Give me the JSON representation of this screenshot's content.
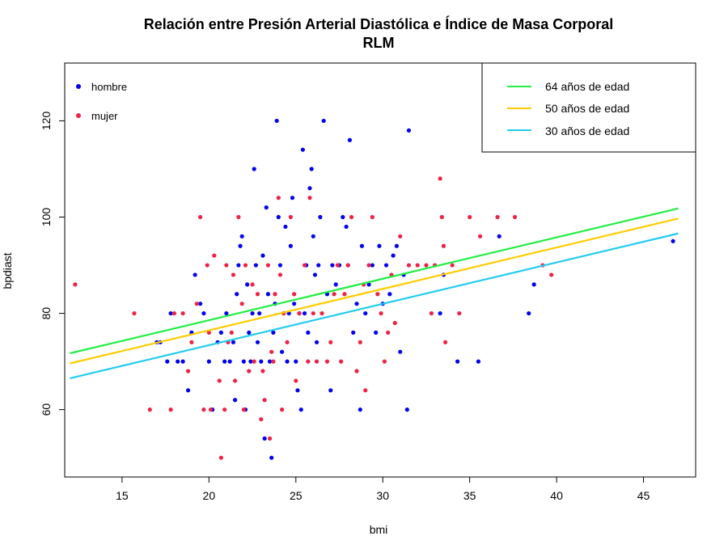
{
  "chart_data": {
    "type": "scatter",
    "title": "Relación entre Presión Arterial Diastólica e Índice de Masa Corporal",
    "subtitle": "RLM",
    "xlabel": "bmi",
    "ylabel": "bpdiast",
    "xlim": [
      11.7,
      48.0
    ],
    "ylim": [
      46,
      132
    ],
    "x_ticks": [
      15,
      20,
      25,
      30,
      35,
      40,
      45
    ],
    "y_ticks": [
      60,
      80,
      100,
      120
    ],
    "grid": false,
    "point_legend": {
      "placement": "top-left",
      "entries": [
        {
          "label": "hombre",
          "color": "#0000EE"
        },
        {
          "label": "mujer",
          "color": "#EE2244"
        }
      ]
    },
    "line_legend": {
      "placement": "top-right",
      "entries": [
        {
          "label": "64 años de edad",
          "color": "#22EE44"
        },
        {
          "label": "50 años de edad",
          "color": "#FFCC00"
        },
        {
          "label": "30 años de edad",
          "color": "#22CCEE"
        }
      ]
    },
    "lines": [
      {
        "name": "64 años de edad",
        "color": "#22EE44",
        "x": [
          12.0,
          47.0
        ],
        "y": [
          71.7,
          101.8
        ]
      },
      {
        "name": "50 años de edad",
        "color": "#FFCC00",
        "x": [
          12.0,
          47.0
        ],
        "y": [
          69.6,
          99.7
        ]
      },
      {
        "name": "30 años de edad",
        "color": "#22CCEE",
        "x": [
          12.0,
          47.0
        ],
        "y": [
          66.5,
          96.6
        ]
      }
    ],
    "series": [
      {
        "name": "hombre",
        "color": "#0000EE",
        "points": [
          [
            17.0,
            74
          ],
          [
            17.2,
            74
          ],
          [
            17.6,
            70
          ],
          [
            17.8,
            80
          ],
          [
            18.2,
            70
          ],
          [
            18.5,
            70
          ],
          [
            18.8,
            64
          ],
          [
            19.0,
            76
          ],
          [
            19.2,
            88
          ],
          [
            19.5,
            82
          ],
          [
            19.7,
            80
          ],
          [
            20.0,
            70
          ],
          [
            20.2,
            60
          ],
          [
            20.5,
            74
          ],
          [
            20.7,
            76
          ],
          [
            20.9,
            70
          ],
          [
            21.0,
            80
          ],
          [
            21.2,
            70
          ],
          [
            21.4,
            74
          ],
          [
            21.5,
            62
          ],
          [
            21.6,
            84
          ],
          [
            21.7,
            90
          ],
          [
            21.8,
            94
          ],
          [
            21.9,
            96
          ],
          [
            22.0,
            70
          ],
          [
            22.1,
            60
          ],
          [
            22.2,
            86
          ],
          [
            22.3,
            76
          ],
          [
            22.4,
            70
          ],
          [
            22.5,
            80
          ],
          [
            22.6,
            110
          ],
          [
            22.7,
            90
          ],
          [
            22.8,
            74
          ],
          [
            22.9,
            80
          ],
          [
            23.0,
            70
          ],
          [
            23.1,
            92
          ],
          [
            23.2,
            54
          ],
          [
            23.3,
            102
          ],
          [
            23.4,
            84
          ],
          [
            23.5,
            70
          ],
          [
            23.6,
            50
          ],
          [
            23.7,
            76
          ],
          [
            23.8,
            82
          ],
          [
            23.9,
            120
          ],
          [
            24.0,
            100
          ],
          [
            24.1,
            90
          ],
          [
            24.2,
            72
          ],
          [
            24.3,
            80
          ],
          [
            24.4,
            98
          ],
          [
            24.5,
            70
          ],
          [
            24.6,
            80
          ],
          [
            24.7,
            94
          ],
          [
            24.8,
            104
          ],
          [
            24.9,
            82
          ],
          [
            25.0,
            70
          ],
          [
            25.1,
            64
          ],
          [
            25.2,
            80
          ],
          [
            25.3,
            60
          ],
          [
            25.4,
            114
          ],
          [
            25.5,
            80
          ],
          [
            25.6,
            90
          ],
          [
            25.7,
            76
          ],
          [
            25.8,
            106
          ],
          [
            25.9,
            110
          ],
          [
            26.0,
            96
          ],
          [
            26.1,
            88
          ],
          [
            26.2,
            74
          ],
          [
            26.3,
            90
          ],
          [
            26.4,
            100
          ],
          [
            26.6,
            120
          ],
          [
            26.8,
            84
          ],
          [
            27.0,
            64
          ],
          [
            27.1,
            90
          ],
          [
            27.3,
            86
          ],
          [
            27.5,
            90
          ],
          [
            27.7,
            100
          ],
          [
            27.9,
            98
          ],
          [
            28.0,
            90
          ],
          [
            28.1,
            116
          ],
          [
            28.3,
            76
          ],
          [
            28.5,
            82
          ],
          [
            28.7,
            60
          ],
          [
            28.8,
            94
          ],
          [
            29.0,
            80
          ],
          [
            29.2,
            86
          ],
          [
            29.4,
            90
          ],
          [
            29.6,
            76
          ],
          [
            29.8,
            94
          ],
          [
            30.0,
            82
          ],
          [
            30.2,
            90
          ],
          [
            30.4,
            84
          ],
          [
            30.6,
            92
          ],
          [
            30.8,
            94
          ],
          [
            31.0,
            72
          ],
          [
            31.2,
            88
          ],
          [
            31.4,
            60
          ],
          [
            31.5,
            118
          ],
          [
            33.3,
            80
          ],
          [
            33.5,
            88
          ],
          [
            34.3,
            70
          ],
          [
            35.5,
            70
          ],
          [
            36.7,
            96
          ],
          [
            38.4,
            80
          ],
          [
            38.7,
            86
          ],
          [
            46.7,
            95
          ]
        ]
      },
      {
        "name": "mujer",
        "color": "#EE2244",
        "points": [
          [
            12.3,
            86
          ],
          [
            15.7,
            80
          ],
          [
            16.6,
            60
          ],
          [
            17.8,
            60
          ],
          [
            18.0,
            80
          ],
          [
            18.5,
            80
          ],
          [
            18.8,
            68
          ],
          [
            19.0,
            74
          ],
          [
            19.3,
            82
          ],
          [
            19.5,
            100
          ],
          [
            19.7,
            60
          ],
          [
            19.9,
            90
          ],
          [
            20.0,
            76
          ],
          [
            20.1,
            60
          ],
          [
            20.3,
            92
          ],
          [
            20.6,
            66
          ],
          [
            20.7,
            50
          ],
          [
            20.9,
            60
          ],
          [
            21.0,
            90
          ],
          [
            21.1,
            74
          ],
          [
            21.3,
            76
          ],
          [
            21.4,
            88
          ],
          [
            21.5,
            66
          ],
          [
            21.7,
            100
          ],
          [
            21.9,
            82
          ],
          [
            22.0,
            60
          ],
          [
            22.1,
            90
          ],
          [
            22.3,
            68
          ],
          [
            22.5,
            86
          ],
          [
            22.6,
            70
          ],
          [
            22.8,
            84
          ],
          [
            23.0,
            58
          ],
          [
            23.1,
            68
          ],
          [
            23.2,
            62
          ],
          [
            23.4,
            90
          ],
          [
            23.5,
            54
          ],
          [
            23.6,
            72
          ],
          [
            23.7,
            70
          ],
          [
            23.8,
            84
          ],
          [
            24.0,
            104
          ],
          [
            24.1,
            88
          ],
          [
            24.2,
            60
          ],
          [
            24.3,
            80
          ],
          [
            24.5,
            74
          ],
          [
            24.7,
            100
          ],
          [
            24.9,
            84
          ],
          [
            25.0,
            66
          ],
          [
            25.2,
            80
          ],
          [
            25.5,
            90
          ],
          [
            25.7,
            70
          ],
          [
            25.8,
            104
          ],
          [
            26.0,
            80
          ],
          [
            26.2,
            70
          ],
          [
            26.5,
            80
          ],
          [
            26.8,
            70
          ],
          [
            27.0,
            74
          ],
          [
            27.2,
            84
          ],
          [
            27.4,
            90
          ],
          [
            27.6,
            70
          ],
          [
            27.8,
            84
          ],
          [
            28.0,
            90
          ],
          [
            28.2,
            100
          ],
          [
            28.5,
            68
          ],
          [
            28.7,
            74
          ],
          [
            28.9,
            86
          ],
          [
            29.0,
            64
          ],
          [
            29.2,
            90
          ],
          [
            29.4,
            100
          ],
          [
            29.7,
            84
          ],
          [
            29.9,
            80
          ],
          [
            30.1,
            70
          ],
          [
            30.3,
            76
          ],
          [
            30.5,
            88
          ],
          [
            30.7,
            78
          ],
          [
            31.0,
            96
          ],
          [
            31.5,
            90
          ],
          [
            32.0,
            90
          ],
          [
            32.5,
            90
          ],
          [
            32.8,
            80
          ],
          [
            33.0,
            90
          ],
          [
            33.3,
            108
          ],
          [
            33.4,
            100
          ],
          [
            33.5,
            94
          ],
          [
            33.6,
            74
          ],
          [
            34.0,
            90
          ],
          [
            34.4,
            80
          ],
          [
            35.0,
            100
          ],
          [
            35.6,
            96
          ],
          [
            36.6,
            100
          ],
          [
            37.6,
            100
          ],
          [
            39.2,
            90
          ],
          [
            39.7,
            88
          ]
        ]
      }
    ]
  }
}
